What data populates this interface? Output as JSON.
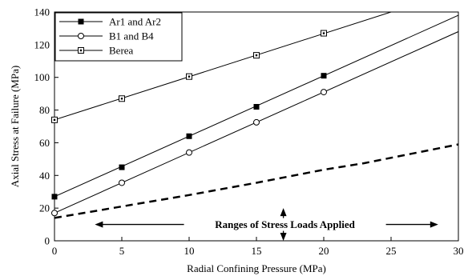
{
  "chart_data": {
    "type": "line",
    "xlabel": "Radial Confining Pressure (MPa)",
    "ylabel": "Axial Stress at Failure (MPa)",
    "xlim": [
      0,
      30
    ],
    "ylim": [
      0,
      140
    ],
    "xticks": [
      0,
      5,
      10,
      15,
      20,
      25,
      30
    ],
    "yticks": [
      0,
      20,
      40,
      60,
      80,
      100,
      120,
      140
    ],
    "grid": false,
    "legend": "top-left",
    "series": [
      {
        "name": "Ar1 and Ar2",
        "marker": "filled-square",
        "x": [
          0,
          5,
          10,
          15,
          20
        ],
        "y": [
          27,
          45,
          64,
          82,
          101
        ],
        "fit": {
          "x": [
            0,
            30
          ],
          "y": [
            27,
            138
          ]
        }
      },
      {
        "name": "B1 and B4",
        "marker": "open-circle",
        "x": [
          0,
          5,
          10,
          15,
          20
        ],
        "y": [
          17,
          35.5,
          54,
          72.5,
          91
        ],
        "fit": {
          "x": [
            0,
            30
          ],
          "y": [
            17,
            128
          ]
        }
      },
      {
        "name": "Berea",
        "marker": "dotted-square",
        "x": [
          0,
          5,
          10,
          15,
          20
        ],
        "y": [
          74,
          87,
          100.5,
          113.5,
          127
        ],
        "fit": {
          "x": [
            0,
            25
          ],
          "y": [
            74,
            140
          ]
        }
      }
    ],
    "dashed_line": {
      "x": [
        0,
        5,
        10,
        15,
        20,
        23,
        30
      ],
      "y": [
        14,
        21,
        28,
        35.5,
        43.5,
        47.5,
        59
      ]
    },
    "annotation": {
      "text": "Ranges of Stress Loads Applied",
      "horizontal_arrow_y": 10,
      "horizontal_arrow_x": [
        3,
        28.5
      ],
      "vertical_arrow_x": 17,
      "vertical_arrow_y": [
        0,
        20
      ]
    }
  }
}
